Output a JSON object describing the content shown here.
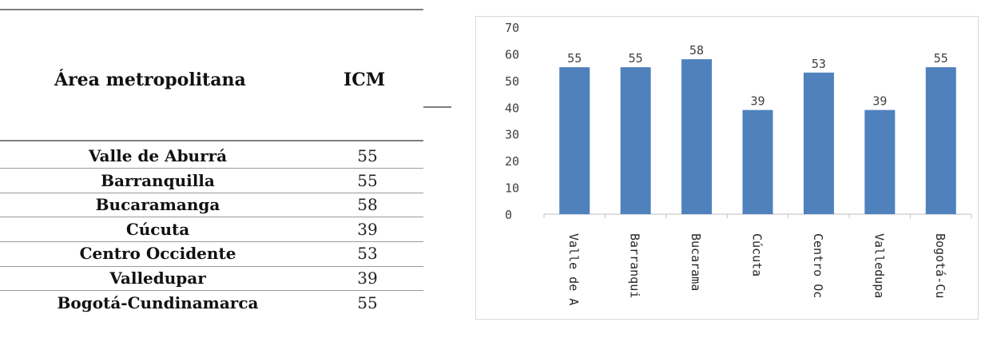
{
  "table": {
    "header": {
      "col1": "Área metropolitana",
      "col2": "ICM"
    },
    "rows": [
      {
        "name": "Valle de Aburrá",
        "value": "55"
      },
      {
        "name": "Barranquilla",
        "value": "55"
      },
      {
        "name": "Bucaramanga",
        "value": "58"
      },
      {
        "name": "Cúcuta",
        "value": "39"
      },
      {
        "name": "Centro Occidente",
        "value": "53"
      },
      {
        "name": "Valledupar",
        "value": "39"
      },
      {
        "name": "Bogotá-Cundinamarca",
        "value": "55"
      }
    ]
  },
  "chart_data": {
    "type": "bar",
    "categories": [
      "Valle de A",
      "Barranqui",
      "Bucarama",
      "Cúcuta",
      "Centro Oc",
      "Valledupa",
      "Bogotá-Cu"
    ],
    "values": [
      55,
      55,
      58,
      39,
      53,
      39,
      55
    ],
    "ylim": [
      0,
      70
    ],
    "yticks": [
      0,
      10,
      20,
      30,
      40,
      50,
      60,
      70
    ],
    "bar_color": "#4f81bd",
    "axis_color": "#bfbfbf",
    "data_labels": true,
    "grid": false
  }
}
